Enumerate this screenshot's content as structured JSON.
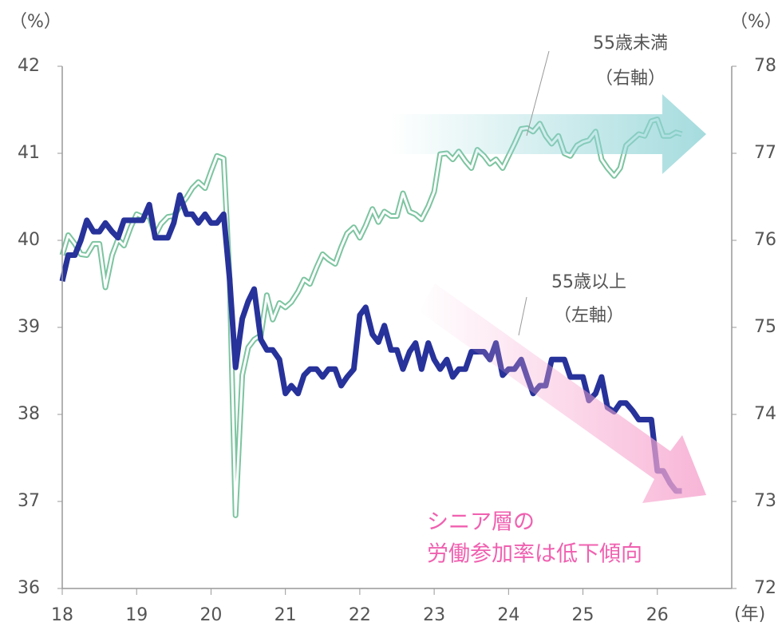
{
  "chart_data": {
    "type": "line",
    "y_unit": "（%）",
    "y2_unit": "（%）",
    "x_unit": "(年)",
    "annotations": [
      "（右軸）",
      "（左軸）",
      "シニア層の",
      "労働参加率は低下傾向"
    ],
    "x": [
      18,
      18.08,
      18.17,
      18.25,
      18.33,
      18.42,
      18.5,
      18.58,
      18.67,
      18.75,
      18.83,
      18.92,
      19,
      19.08,
      19.17,
      19.25,
      19.33,
      19.42,
      19.5,
      19.58,
      19.67,
      19.75,
      19.83,
      19.92,
      20,
      20.08,
      20.17,
      20.25,
      20.33,
      20.42,
      20.5,
      20.58,
      20.67,
      20.75,
      20.83,
      20.92,
      21,
      21.08,
      21.17,
      21.25,
      21.33,
      21.42,
      21.5,
      21.58,
      21.67,
      21.75,
      21.83,
      21.92,
      22,
      22.08,
      22.17,
      22.25,
      22.33,
      22.42,
      22.5,
      22.58,
      22.67,
      22.75,
      22.83,
      22.92,
      23,
      23.08,
      23.17,
      23.25,
      23.33,
      23.42,
      23.5,
      23.58,
      23.67,
      23.75,
      23.83,
      23.92,
      24,
      24.08,
      24.17,
      24.25,
      24.33,
      24.42,
      24.5,
      24.58,
      24.67,
      24.75,
      24.83,
      24.92,
      25,
      25.08,
      25.17,
      25.25,
      25.33,
      25.42,
      25.5,
      25.58,
      25.67,
      25.75,
      25.83,
      25.92,
      26,
      26.08,
      26.17,
      26.25,
      26.33
    ],
    "series": [
      {
        "name": "55歳以上",
        "color": "#27329a",
        "axis": "y",
        "values": [
          39.53,
          39.83,
          39.83,
          40.0,
          40.23,
          40.1,
          40.1,
          40.2,
          40.1,
          40.03,
          40.23,
          40.23,
          40.23,
          40.23,
          40.41,
          40.03,
          40.03,
          40.03,
          40.2,
          40.52,
          40.3,
          40.3,
          40.2,
          40.3,
          40.2,
          40.2,
          40.3,
          39.55,
          38.54,
          39.1,
          39.3,
          39.44,
          38.86,
          38.74,
          38.74,
          38.63,
          38.24,
          38.33,
          38.24,
          38.45,
          38.52,
          38.52,
          38.43,
          38.52,
          38.52,
          38.33,
          38.43,
          38.52,
          39.14,
          39.23,
          38.92,
          38.83,
          39.02,
          38.74,
          38.74,
          38.52,
          38.72,
          38.82,
          38.52,
          38.82,
          38.63,
          38.52,
          38.63,
          38.43,
          38.52,
          38.52,
          38.72,
          38.72,
          38.72,
          38.63,
          38.82,
          38.45,
          38.52,
          38.52,
          38.63,
          38.43,
          38.24,
          38.33,
          38.33,
          38.63,
          38.63,
          38.63,
          38.43,
          38.43,
          38.43,
          38.16,
          38.24,
          38.43,
          38.08,
          38.03,
          38.13,
          38.13,
          38.04,
          37.94,
          37.94,
          37.94,
          37.35,
          37.35,
          37.21,
          37.12,
          37.12
        ]
      },
      {
        "name": "55歳未満",
        "color": "#7cc4a0",
        "axis": "y2",
        "values": [
          75.83,
          76.06,
          75.96,
          75.84,
          75.83,
          75.96,
          75.96,
          75.46,
          75.83,
          76.01,
          75.94,
          76.15,
          76.3,
          76.27,
          76.28,
          76.06,
          76.19,
          76.27,
          76.28,
          76.39,
          76.49,
          76.6,
          76.67,
          76.6,
          76.79,
          76.97,
          76.94,
          75.55,
          72.84,
          74.45,
          74.77,
          74.86,
          74.91,
          75.37,
          75.09,
          75.28,
          75.23,
          75.29,
          75.41,
          75.55,
          75.5,
          75.69,
          75.84,
          75.78,
          75.73,
          75.92,
          76.08,
          76.15,
          76.03,
          76.17,
          76.36,
          76.21,
          76.33,
          76.28,
          76.28,
          76.54,
          76.33,
          76.3,
          76.24,
          76.39,
          76.56,
          76.99,
          77.0,
          76.93,
          77.02,
          76.91,
          76.83,
          77.04,
          76.97,
          76.88,
          76.93,
          76.83,
          76.97,
          77.11,
          77.28,
          77.29,
          77.25,
          77.34,
          77.2,
          77.11,
          77.2,
          77.0,
          76.97,
          77.09,
          77.13,
          77.15,
          77.25,
          76.93,
          76.83,
          76.74,
          76.83,
          77.09,
          77.16,
          77.22,
          77.2,
          77.37,
          77.39,
          77.2,
          77.2,
          77.24,
          77.22
        ]
      }
    ],
    "xlim": [
      18,
      27
    ],
    "xticks": [
      18,
      19,
      20,
      21,
      22,
      23,
      24,
      25,
      26
    ],
    "ylim": [
      36,
      42
    ],
    "yticks": [
      36,
      37,
      38,
      39,
      40,
      41,
      42
    ],
    "y2lim": [
      72,
      78
    ],
    "y2ticks": [
      72,
      73,
      74,
      75,
      76,
      77,
      78
    ]
  }
}
